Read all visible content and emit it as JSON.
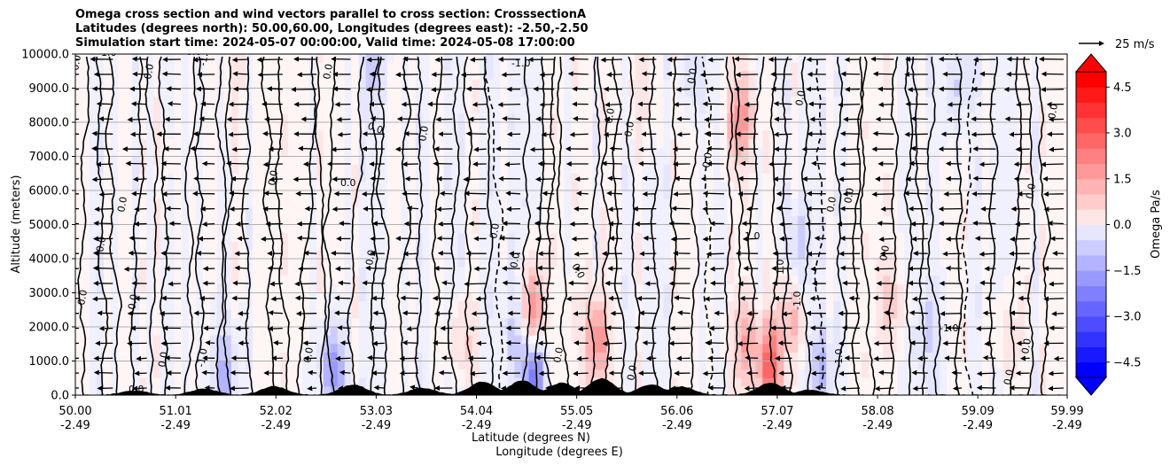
{
  "title": {
    "line1": "Omega cross section and wind vectors parallel to cross section: CrosssectionA",
    "line2": "Latitudes (degrees north): 50.00,60.00, Longitudes (degrees east): -2.50,-2.50",
    "line3": "Simulation start time: 2024-05-07 00:00:00, Valid time: 2024-05-08 17:00:00"
  },
  "chart_data": {
    "type": "heatmap",
    "subtype": "cross-section contour with wind vectors",
    "xlabel_line1": "Latitude (degrees N)",
    "xlabel_line2": "Longitude (degrees E)",
    "ylabel": "Altitude (meters)",
    "xlim": [
      50.0,
      59.99
    ],
    "ylim": [
      0,
      10000
    ],
    "x_ticks": [
      {
        "lat": "50.00",
        "lon": "-2.49",
        "value": 50.0
      },
      {
        "lat": "51.01",
        "lon": "-2.49",
        "value": 51.01
      },
      {
        "lat": "52.02",
        "lon": "-2.49",
        "value": 52.02
      },
      {
        "lat": "53.03",
        "lon": "-2.49",
        "value": 53.03
      },
      {
        "lat": "54.04",
        "lon": "-2.49",
        "value": 54.04
      },
      {
        "lat": "55.05",
        "lon": "-2.49",
        "value": 55.05
      },
      {
        "lat": "56.06",
        "lon": "-2.49",
        "value": 56.06
      },
      {
        "lat": "57.07",
        "lon": "-2.49",
        "value": 57.07
      },
      {
        "lat": "58.08",
        "lon": "-2.49",
        "value": 58.08
      },
      {
        "lat": "59.09",
        "lon": "-2.49",
        "value": 59.09
      },
      {
        "lat": "59.99",
        "lon": "-2.49",
        "value": 59.99
      }
    ],
    "y_ticks": [
      {
        "label": "0.0",
        "value": 0
      },
      {
        "label": "1000.0",
        "value": 1000
      },
      {
        "label": "2000.0",
        "value": 2000
      },
      {
        "label": "3000.0",
        "value": 3000
      },
      {
        "label": "4000.0",
        "value": 4000
      },
      {
        "label": "5000.0",
        "value": 5000
      },
      {
        "label": "6000.0",
        "value": 6000
      },
      {
        "label": "7000.0",
        "value": 7000
      },
      {
        "label": "8000.0",
        "value": 8000
      },
      {
        "label": "9000.0",
        "value": 9000
      },
      {
        "label": "10000.0",
        "value": 10000
      }
    ],
    "grid": true,
    "colorbar": {
      "label": "Omega Pa/s",
      "range": [
        -5.0,
        5.0
      ],
      "step": 0.5,
      "extend": "both",
      "tick_labels": [
        {
          "label": "4.5",
          "value": 4.5
        },
        {
          "label": "3.0",
          "value": 3.0
        },
        {
          "label": "1.5",
          "value": 1.5
        },
        {
          "label": "0.0",
          "value": 0.0
        },
        {
          "label": "−1.5",
          "value": -1.5
        },
        {
          "label": "−3.0",
          "value": -3.0
        },
        {
          "label": "−4.5",
          "value": -4.5
        }
      ],
      "colors": {
        "negative": "#0000ff",
        "zero": "#ffffff",
        "positive": "#ff0000"
      }
    },
    "quiver_key": {
      "label": "25 m/s",
      "speed": 25
    },
    "wind_direction": "southward (toward lower latitude)",
    "contour_labels": [
      "0.0",
      "-1.0",
      "1.0"
    ],
    "omega_features": [
      {
        "lat": 50.9,
        "alt": 6500,
        "omega": 0.2
      },
      {
        "lat": 51.6,
        "alt": 9500,
        "omega": 0.4
      },
      {
        "lat": 51.5,
        "alt": 600,
        "omega": -1.5
      },
      {
        "lat": 52.6,
        "alt": 700,
        "omega": -2.2
      },
      {
        "lat": 53.0,
        "alt": 9500,
        "omega": -0.9
      },
      {
        "lat": 53.9,
        "alt": 1500,
        "omega": 0.8
      },
      {
        "lat": 54.45,
        "alt": 2000,
        "omega": -1.0
      },
      {
        "lat": 54.6,
        "alt": 2400,
        "omega": 2.6
      },
      {
        "lat": 54.62,
        "alt": 600,
        "omega": -2.8
      },
      {
        "lat": 55.25,
        "alt": 1600,
        "omega": 2.2
      },
      {
        "lat": 55.7,
        "alt": 9000,
        "omega": 0.6
      },
      {
        "lat": 56.25,
        "alt": 9600,
        "omega": -0.7
      },
      {
        "lat": 56.7,
        "alt": 8000,
        "omega": 2.0
      },
      {
        "lat": 56.75,
        "alt": 1500,
        "omega": 1.6
      },
      {
        "lat": 57.0,
        "alt": 900,
        "omega": 3.0
      },
      {
        "lat": 57.2,
        "alt": 2200,
        "omega": 1.2
      },
      {
        "lat": 57.3,
        "alt": 4500,
        "omega": -1.0
      },
      {
        "lat": 57.5,
        "alt": 800,
        "omega": -1.2
      },
      {
        "lat": 58.2,
        "alt": 2800,
        "omega": 0.9
      },
      {
        "lat": 58.6,
        "alt": 1800,
        "omega": -0.7
      },
      {
        "lat": 58.9,
        "alt": 9000,
        "omega": -0.8
      },
      {
        "lat": 59.4,
        "alt": 1500,
        "omega": 0.6
      }
    ],
    "terrain_peaks": [
      {
        "lat": 50.6,
        "alt": 120
      },
      {
        "lat": 51.3,
        "alt": 180
      },
      {
        "lat": 52.0,
        "alt": 250
      },
      {
        "lat": 52.8,
        "alt": 300
      },
      {
        "lat": 53.5,
        "alt": 200
      },
      {
        "lat": 54.1,
        "alt": 380
      },
      {
        "lat": 54.5,
        "alt": 420
      },
      {
        "lat": 54.9,
        "alt": 350
      },
      {
        "lat": 55.3,
        "alt": 480
      },
      {
        "lat": 55.8,
        "alt": 300
      },
      {
        "lat": 56.1,
        "alt": 240
      },
      {
        "lat": 57.0,
        "alt": 350
      },
      {
        "lat": 57.4,
        "alt": 150
      }
    ]
  }
}
